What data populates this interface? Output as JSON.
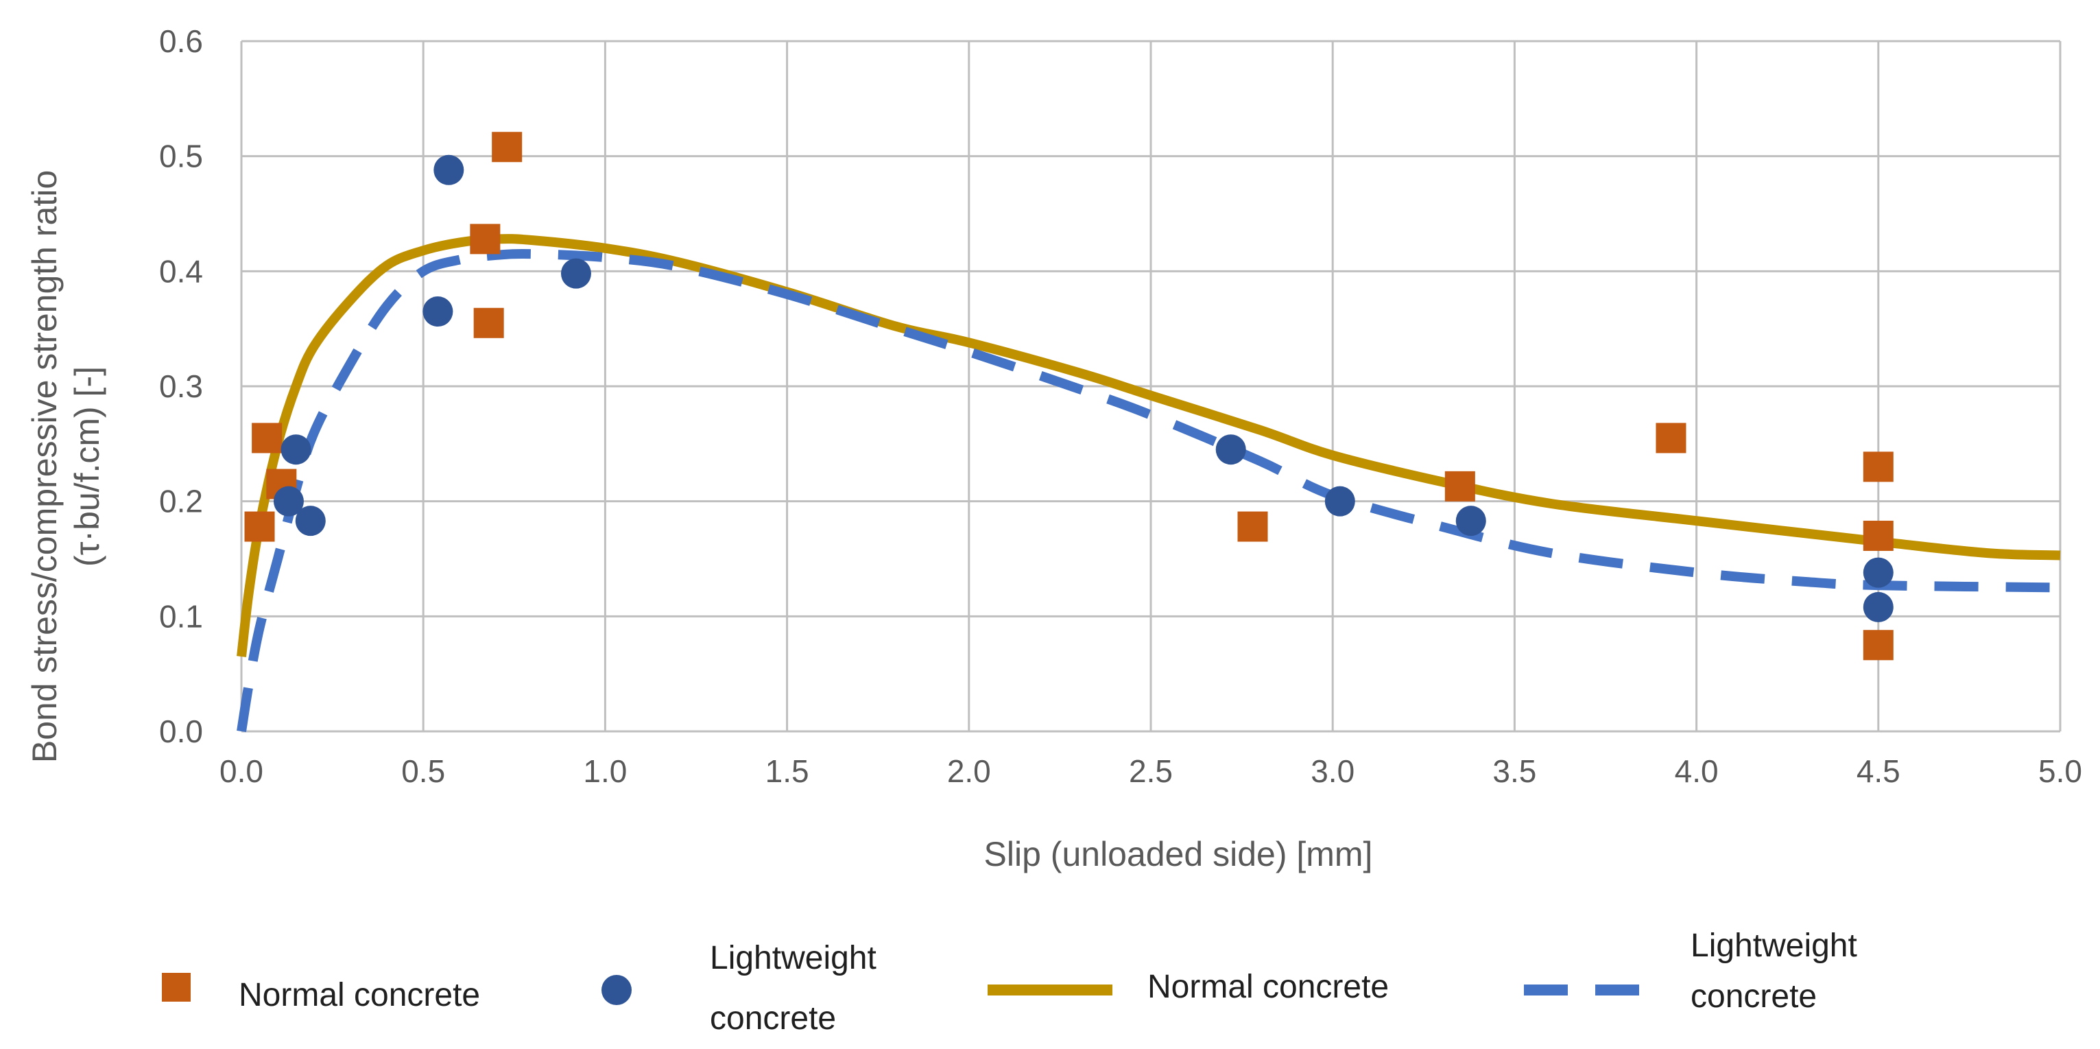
{
  "chart_data": {
    "type": "scatter",
    "xlabel": "Slip (unloaded side) [mm]",
    "ylabel_line1": "Bond stress/compressive strength ratio",
    "ylabel_line2": "(τ·bu/f.cm) [-]",
    "xlim": [
      0,
      5
    ],
    "ylim": [
      0,
      0.6
    ],
    "xticks": [
      "0.0",
      "0.5",
      "1.0",
      "1.5",
      "2.0",
      "2.5",
      "3.0",
      "3.5",
      "4.0",
      "4.5",
      "5.0"
    ],
    "yticks": [
      "0.0",
      "0.1",
      "0.2",
      "0.3",
      "0.4",
      "0.5",
      "0.6"
    ],
    "grid": "vertical and horizontal",
    "legend_position": "bottom",
    "colors": {
      "normal_points": "#C55A11",
      "lightweight_points": "#2F5597",
      "normal_curve": "#BF9000",
      "lightweight_curve": "#4472C4",
      "grid": "#BFBFBF"
    },
    "series": [
      {
        "name": "Normal concrete",
        "kind": "points",
        "marker": "square",
        "points": [
          [
            0.05,
            0.178
          ],
          [
            0.07,
            0.255
          ],
          [
            0.11,
            0.215
          ],
          [
            0.67,
            0.428
          ],
          [
            0.68,
            0.355
          ],
          [
            0.73,
            0.508
          ],
          [
            2.78,
            0.178
          ],
          [
            3.35,
            0.213
          ],
          [
            3.93,
            0.255
          ],
          [
            4.5,
            0.23
          ],
          [
            4.5,
            0.17
          ],
          [
            4.5,
            0.075
          ]
        ]
      },
      {
        "name": "Lightweight concrete",
        "kind": "points",
        "marker": "circle",
        "points": [
          [
            0.13,
            0.2
          ],
          [
            0.15,
            0.245
          ],
          [
            0.19,
            0.183
          ],
          [
            0.54,
            0.365
          ],
          [
            0.57,
            0.488
          ],
          [
            0.92,
            0.398
          ],
          [
            2.72,
            0.245
          ],
          [
            3.02,
            0.2
          ],
          [
            3.38,
            0.183
          ],
          [
            4.5,
            0.138
          ],
          [
            4.5,
            0.108
          ]
        ]
      },
      {
        "name": "Normal concrete",
        "kind": "line",
        "style": "solid",
        "points": [
          [
            0.0,
            0.065
          ],
          [
            0.02,
            0.12
          ],
          [
            0.05,
            0.18
          ],
          [
            0.1,
            0.25
          ],
          [
            0.15,
            0.3
          ],
          [
            0.2,
            0.335
          ],
          [
            0.3,
            0.375
          ],
          [
            0.4,
            0.405
          ],
          [
            0.5,
            0.418
          ],
          [
            0.6,
            0.425
          ],
          [
            0.7,
            0.428
          ],
          [
            0.8,
            0.427
          ],
          [
            1.0,
            0.42
          ],
          [
            1.2,
            0.408
          ],
          [
            1.5,
            0.382
          ],
          [
            1.8,
            0.352
          ],
          [
            2.0,
            0.338
          ],
          [
            2.3,
            0.312
          ],
          [
            2.5,
            0.292
          ],
          [
            2.8,
            0.262
          ],
          [
            3.0,
            0.24
          ],
          [
            3.3,
            0.217
          ],
          [
            3.6,
            0.198
          ],
          [
            4.0,
            0.183
          ],
          [
            4.5,
            0.165
          ],
          [
            4.8,
            0.155
          ],
          [
            5.0,
            0.153
          ]
        ]
      },
      {
        "name": "Lightweight concrete",
        "kind": "line",
        "style": "dashed",
        "points": [
          [
            0.0,
            0.0
          ],
          [
            0.02,
            0.04
          ],
          [
            0.05,
            0.09
          ],
          [
            0.1,
            0.15
          ],
          [
            0.15,
            0.21
          ],
          [
            0.2,
            0.26
          ],
          [
            0.3,
            0.32
          ],
          [
            0.4,
            0.37
          ],
          [
            0.5,
            0.4
          ],
          [
            0.6,
            0.41
          ],
          [
            0.7,
            0.414
          ],
          [
            0.8,
            0.415
          ],
          [
            1.0,
            0.412
          ],
          [
            1.2,
            0.404
          ],
          [
            1.5,
            0.38
          ],
          [
            1.8,
            0.35
          ],
          [
            2.0,
            0.33
          ],
          [
            2.3,
            0.298
          ],
          [
            2.5,
            0.275
          ],
          [
            2.8,
            0.235
          ],
          [
            3.0,
            0.205
          ],
          [
            3.3,
            0.178
          ],
          [
            3.6,
            0.155
          ],
          [
            4.0,
            0.138
          ],
          [
            4.3,
            0.13
          ],
          [
            4.5,
            0.127
          ],
          [
            5.0,
            0.125
          ]
        ]
      }
    ],
    "legend": [
      {
        "label": "Normal concrete",
        "symbol": "square"
      },
      {
        "label_line1": "Lightweight",
        "label_line2": "concrete",
        "symbol": "circle"
      },
      {
        "label": "Normal concrete",
        "symbol": "solid-line"
      },
      {
        "label_line1": "Lightweight",
        "label_line2": "concrete",
        "symbol": "dashed-line"
      }
    ]
  }
}
